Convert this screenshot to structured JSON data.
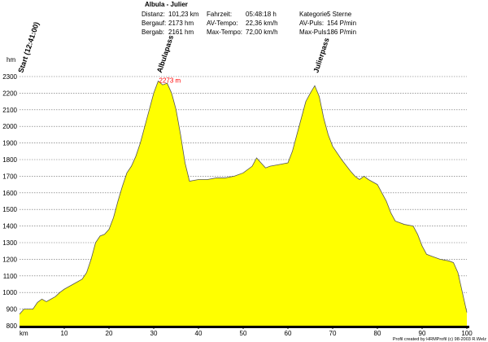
{
  "chart_data": {
    "type": "area",
    "title": "Albula - Julier",
    "stats": [
      [
        "Distanz:",
        "101,23 km",
        "Fahrzeit:",
        "05:48:18 h",
        "Kategorie:",
        "5 Sterne"
      ],
      [
        "Bergauf:",
        "2173 hm",
        "AV-Tempo:",
        "22,36 km/h",
        "AV-Puls:",
        "154 P/min"
      ],
      [
        "Bergab:",
        "2161 hm",
        "Max-Tempo:",
        "72,00 km/h",
        "Max-Puls:",
        "186 P/min"
      ]
    ],
    "ylabel": "hm",
    "xlabel": "km",
    "x": [
      0,
      1,
      3,
      4,
      5,
      6,
      7,
      8,
      9,
      10,
      12,
      14,
      15,
      16,
      17,
      18,
      19,
      20,
      21,
      22,
      23,
      24,
      25,
      26,
      27,
      28,
      29,
      30,
      31,
      32,
      33,
      34,
      35,
      36,
      37,
      38,
      39,
      40,
      42,
      44,
      46,
      48,
      50,
      52,
      53,
      54,
      55,
      56,
      58,
      60,
      61,
      62,
      63,
      64,
      65,
      66,
      67,
      68,
      69,
      70,
      72,
      74,
      75,
      76,
      77,
      78,
      80,
      81,
      82,
      83,
      84,
      86,
      88,
      89,
      90,
      91,
      92,
      94,
      96,
      97,
      98,
      99,
      100
    ],
    "values": [
      870,
      900,
      900,
      940,
      960,
      945,
      960,
      975,
      1000,
      1020,
      1050,
      1080,
      1120,
      1200,
      1300,
      1340,
      1350,
      1380,
      1450,
      1550,
      1640,
      1720,
      1760,
      1820,
      1900,
      2000,
      2100,
      2200,
      2273,
      2250,
      2260,
      2200,
      2100,
      1950,
      1780,
      1670,
      1675,
      1680,
      1680,
      1690,
      1690,
      1700,
      1720,
      1760,
      1810,
      1780,
      1750,
      1760,
      1770,
      1780,
      1850,
      1950,
      2050,
      2150,
      2200,
      2245,
      2180,
      2050,
      1950,
      1880,
      1800,
      1730,
      1700,
      1680,
      1700,
      1680,
      1650,
      1600,
      1550,
      1480,
      1430,
      1410,
      1400,
      1350,
      1280,
      1230,
      1220,
      1200,
      1190,
      1180,
      1120,
      1000,
      880
    ],
    "color": "#ffff00",
    "xlim": [
      0,
      100
    ],
    "xticks": [
      10,
      20,
      30,
      40,
      50,
      60,
      70,
      80,
      90,
      100
    ],
    "ylim": [
      800,
      2300
    ],
    "yticks": [
      800,
      900,
      1000,
      1100,
      1200,
      1300,
      1400,
      1500,
      1600,
      1700,
      1800,
      1900,
      2000,
      2100,
      2200,
      2300
    ],
    "grid": true,
    "labels": [
      {
        "text": "Start (12:41:00)",
        "x": 0
      },
      {
        "text": "Albulapass",
        "x": 31
      },
      {
        "text": "Julierpass",
        "x": 66
      }
    ],
    "annotation": {
      "text": "2273 m",
      "x": 31,
      "y": 2273,
      "color": "#ff0000"
    },
    "footer": "Profil created by HRMProfil (c) 98-2003 R.Welz"
  }
}
